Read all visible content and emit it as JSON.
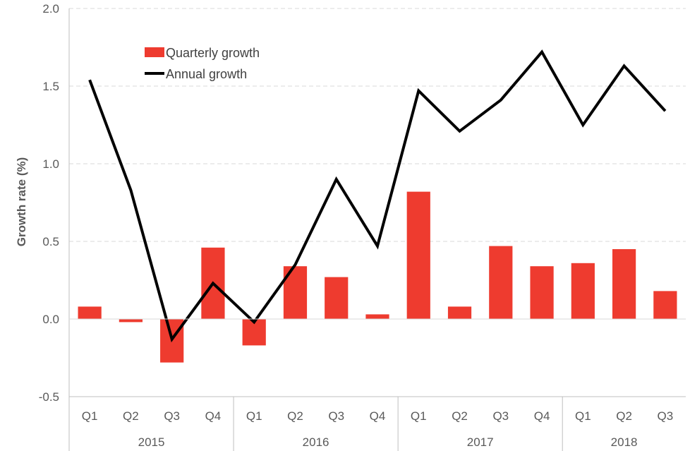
{
  "chart_data": {
    "type": "bar",
    "ylabel": "Growth rate (%)",
    "ylim": [
      -0.5,
      2.0
    ],
    "yticks": [
      "-0.5",
      "0.0",
      "0.5",
      "1.0",
      "1.5",
      "2.0"
    ],
    "grid": true,
    "legend_position": "top-left",
    "categories": [
      "Q1",
      "Q2",
      "Q3",
      "Q4",
      "Q1",
      "Q2",
      "Q3",
      "Q4",
      "Q1",
      "Q2",
      "Q3",
      "Q4",
      "Q1",
      "Q2",
      "Q3"
    ],
    "groups": [
      {
        "label": "2015",
        "count": 4
      },
      {
        "label": "2016",
        "count": 4
      },
      {
        "label": "2017",
        "count": 4
      },
      {
        "label": "2018",
        "count": 3
      }
    ],
    "series": [
      {
        "name": "Quarterly growth",
        "type": "bar",
        "color": "#ee3b2f",
        "values": [
          0.08,
          -0.02,
          -0.28,
          0.46,
          -0.17,
          0.34,
          0.27,
          0.03,
          0.82,
          0.08,
          0.47,
          0.34,
          0.36,
          0.45,
          0.18
        ]
      },
      {
        "name": "Annual growth",
        "type": "line",
        "color": "#000000",
        "values": [
          1.54,
          0.83,
          -0.13,
          0.23,
          -0.02,
          0.35,
          0.9,
          0.47,
          1.47,
          1.21,
          1.41,
          1.72,
          1.25,
          1.63,
          1.34
        ]
      }
    ]
  }
}
